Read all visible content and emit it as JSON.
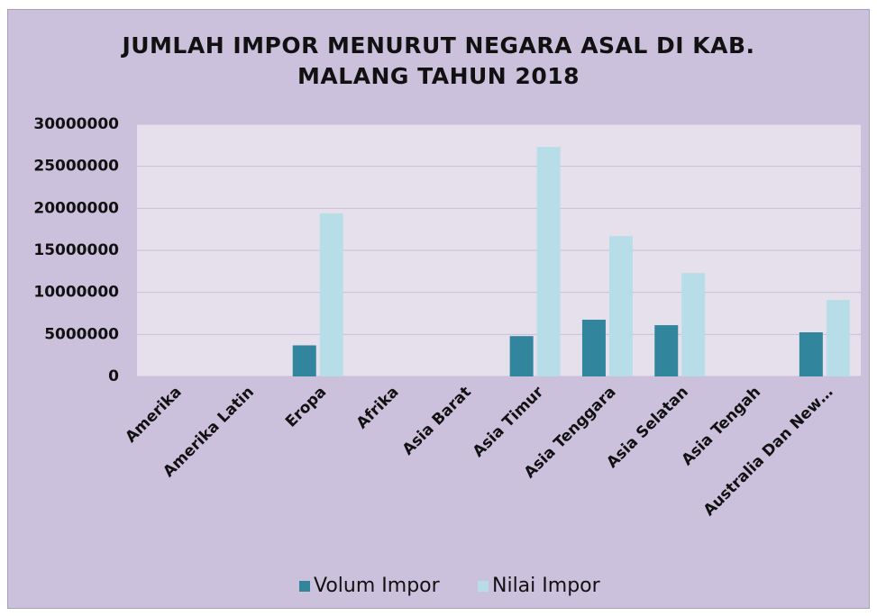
{
  "chart_data": {
    "type": "bar",
    "title": "JUMLAH IMPOR MENURUT NEGARA ASAL DI KAB. MALANG TAHUN 2018",
    "categories": [
      "Amerika",
      "Amerika Latin",
      "Eropa",
      "Afrika",
      "Asia Barat",
      "Asia Timur",
      "Asia Tenggara",
      "Asia Selatan",
      "Asia Tengah",
      "Australia Dan New…"
    ],
    "series": [
      {
        "name": "Volum Impor",
        "color": "#31859c",
        "values": [
          0,
          0,
          3700000,
          0,
          0,
          4800000,
          6750000,
          6100000,
          0,
          5250000
        ]
      },
      {
        "name": "Nilai Impor",
        "color": "#b7dee8",
        "values": [
          0,
          0,
          19400000,
          0,
          0,
          27300000,
          16700000,
          12300000,
          0,
          9100000
        ]
      }
    ],
    "ylim": [
      0,
      30000000
    ],
    "yticks": [
      0,
      5000000,
      10000000,
      15000000,
      20000000,
      25000000,
      30000000
    ],
    "grid": true,
    "legend": "bottom"
  }
}
